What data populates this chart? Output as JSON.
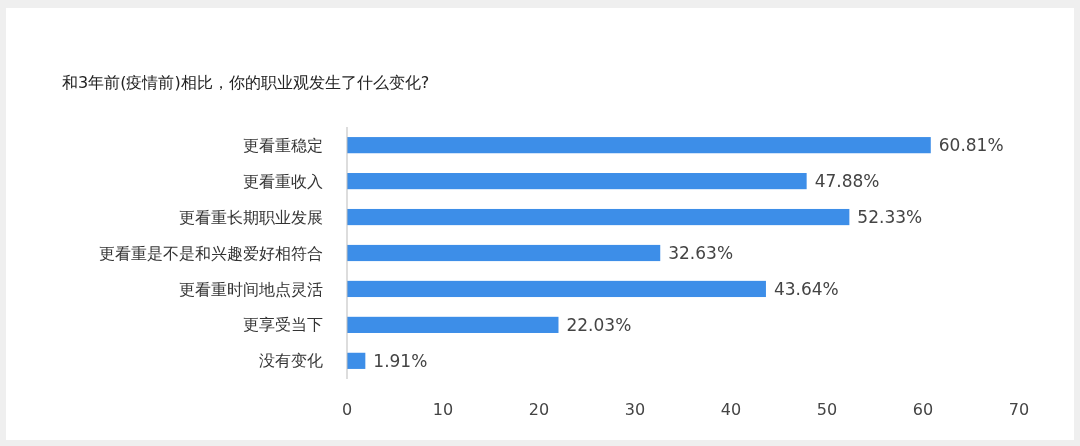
{
  "chart_data": {
    "type": "bar",
    "orientation": "horizontal",
    "title": "和3年前(疫情前)相比，你的职业观发生了什么变化?",
    "categories": [
      "更看重稳定",
      "更看重收入",
      "更看重长期职业发展",
      "更看重是不是和兴趣爱好相符合",
      "更看重时间地点灵活",
      "更享受当下",
      "没有变化"
    ],
    "values": [
      60.81,
      47.88,
      52.33,
      32.63,
      43.64,
      22.03,
      1.91
    ],
    "value_labels": [
      "60.81%",
      "47.88%",
      "52.33%",
      "32.63%",
      "43.64%",
      "22.03%",
      "1.91%"
    ],
    "color": "#3d8ee8",
    "xlim": [
      0,
      70
    ],
    "xticks": [
      0,
      10,
      20,
      30,
      40,
      50,
      60,
      70
    ],
    "grid": false
  }
}
